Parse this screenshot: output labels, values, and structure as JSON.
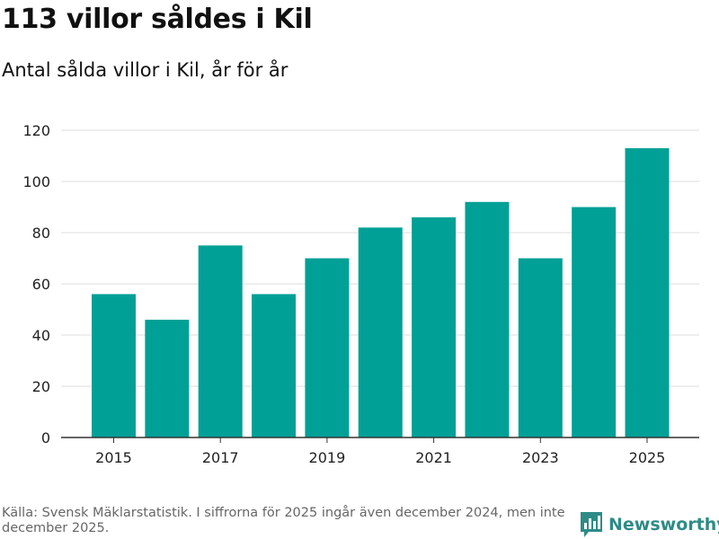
{
  "header": {
    "title": "113 villor såldes i Kil",
    "subtitle": "Antal sålda villor i Kil, år för år"
  },
  "footer": {
    "source": "Källa: Svensk Mäklarstatistik. I siffrorna för 2025 ingår även december 2024, men inte december 2025.",
    "brand": "Newsworthy"
  },
  "colors": {
    "bar": "#00a096",
    "grid": "#dddddd",
    "axis": "#333333",
    "brand": "#2e8b86"
  },
  "icons": {
    "brand_logo": "bar-chart-logo-icon"
  },
  "chart_data": {
    "type": "bar",
    "title": "113 villor såldes i Kil",
    "subtitle": "Antal sålda villor i Kil, år för år",
    "xlabel": "",
    "ylabel": "",
    "categories": [
      "2015",
      "2016",
      "2017",
      "2018",
      "2019",
      "2020",
      "2021",
      "2022",
      "2023",
      "2024",
      "2025"
    ],
    "values": [
      56,
      46,
      75,
      56,
      70,
      82,
      86,
      92,
      70,
      90,
      113
    ],
    "x_tick_labels": [
      "2015",
      "2017",
      "2019",
      "2021",
      "2023",
      "2025"
    ],
    "y_ticks": [
      0,
      20,
      40,
      60,
      80,
      100,
      120
    ],
    "ylim": [
      0,
      120
    ],
    "grid": true,
    "legend": "none"
  }
}
